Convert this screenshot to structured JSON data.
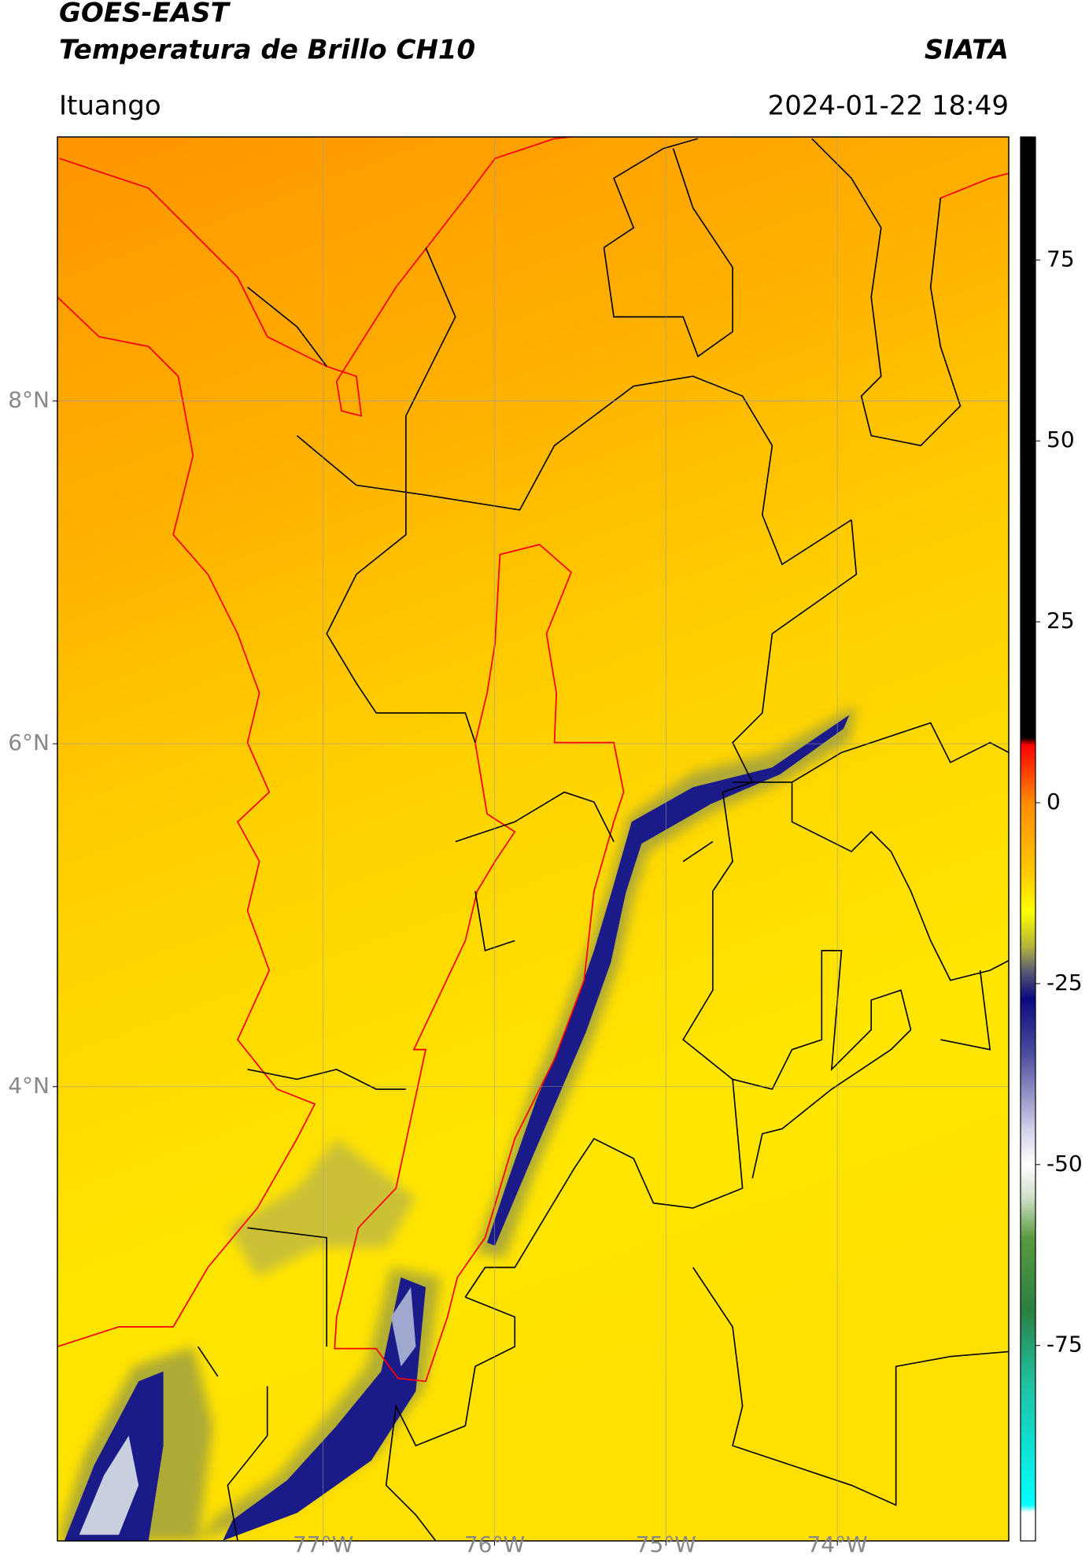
{
  "chart_data": {
    "type": "map",
    "title": "GOES-EAST",
    "subtitle": "Temperatura de Brillo CH10",
    "source": "SIATA",
    "location": "Ituango",
    "timestamp": "2024-01-22 18:49",
    "xlim": [
      -78.55,
      -73.0
    ],
    "ylim": [
      1.35,
      9.54
    ],
    "xticks": [
      {
        "value": -77,
        "label": "77°W"
      },
      {
        "value": -76,
        "label": "76°W"
      },
      {
        "value": -75,
        "label": "75°W"
      },
      {
        "value": -74,
        "label": "74°W"
      }
    ],
    "yticks": [
      {
        "value": 8,
        "label": "8°N"
      },
      {
        "value": 6,
        "label": "6°N"
      },
      {
        "value": 4,
        "label": "4°N"
      }
    ],
    "grid": true,
    "colorbar": {
      "lim": [
        -102,
        92
      ],
      "ticks": [
        75,
        50,
        25,
        0,
        -25,
        -50,
        -75
      ],
      "colormap": [
        {
          "value": 92,
          "color": "#000000"
        },
        {
          "value": 9,
          "color": "#000000"
        },
        {
          "value": 8,
          "color": "#ff0000"
        },
        {
          "value": 0,
          "color": "#ff8c00"
        },
        {
          "value": -10,
          "color": "#ffcc00"
        },
        {
          "value": -15,
          "color": "#ffff00"
        },
        {
          "value": -20,
          "color": "#b0b040"
        },
        {
          "value": -23,
          "color": "#606070"
        },
        {
          "value": -27,
          "color": "#0a0a80"
        },
        {
          "value": -35,
          "color": "#5050a0"
        },
        {
          "value": -45,
          "color": "#d0d0e8"
        },
        {
          "value": -50,
          "color": "#ffffff"
        },
        {
          "value": -55,
          "color": "#c8dcc0"
        },
        {
          "value": -60,
          "color": "#5a9a40"
        },
        {
          "value": -70,
          "color": "#2a8040"
        },
        {
          "value": -80,
          "color": "#20c0a0"
        },
        {
          "value": -97,
          "color": "#00ffff"
        },
        {
          "value": -98,
          "color": "#ffffff"
        },
        {
          "value": -102,
          "color": "#ffffff"
        }
      ]
    }
  }
}
